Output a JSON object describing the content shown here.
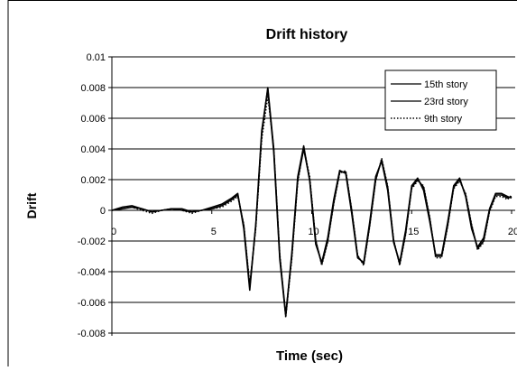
{
  "chart_data": {
    "type": "line",
    "title": "Drift history",
    "xlabel": "Time (sec)",
    "ylabel": "Drift",
    "xlim": [
      0,
      20
    ],
    "ylim": [
      -0.008,
      0.01
    ],
    "x_ticks": [
      "0",
      "5",
      "10",
      "15",
      "20"
    ],
    "y_ticks": [
      "0.01",
      "0.008",
      "0.006",
      "0.004",
      "0.002",
      "0",
      "-0.002",
      "-0.004",
      "-0.006",
      "-0.008",
      ""
    ],
    "grid": "horizontal",
    "legend_position": "top-right",
    "series": [
      {
        "name": "15th story",
        "line_style": "solid",
        "color": "#000000",
        "x": [
          0,
          0.5,
          1,
          1.5,
          2,
          2.5,
          3,
          3.5,
          4,
          4.5,
          5,
          5.5,
          6,
          6.3,
          6.6,
          6.9,
          7.2,
          7.5,
          7.8,
          8.1,
          8.4,
          8.7,
          9,
          9.3,
          9.6,
          9.9,
          10.2,
          10.5,
          10.8,
          11.1,
          11.4,
          11.7,
          12,
          12.3,
          12.6,
          12.9,
          13.2,
          13.5,
          13.8,
          14.1,
          14.4,
          14.7,
          15,
          15.3,
          15.6,
          15.9,
          16.2,
          16.5,
          16.8,
          17.1,
          17.4,
          17.7,
          18,
          18.3,
          18.6,
          18.9,
          19.2,
          19.5,
          19.8,
          20
        ],
        "y": [
          0,
          0.0001,
          0.0002,
          0.0001,
          -0.0001,
          0,
          0.0001,
          0,
          -0.0001,
          0,
          0.0001,
          0.0003,
          0.0007,
          0.001,
          -0.001,
          -0.005,
          -0.001,
          0.005,
          0.008,
          0.004,
          -0.003,
          -0.0068,
          -0.003,
          0.002,
          0.004,
          0.002,
          -0.002,
          -0.0035,
          -0.002,
          0.0005,
          0.0025,
          0.0025,
          0,
          -0.003,
          -0.0035,
          -0.001,
          0.002,
          0.0033,
          0.0015,
          -0.002,
          -0.0035,
          -0.0015,
          0.0015,
          0.002,
          0.0015,
          -0.0005,
          -0.003,
          -0.003,
          -0.001,
          0.0015,
          0.002,
          0.001,
          -0.001,
          -0.0025,
          -0.002,
          0,
          0.001,
          0.001,
          0.0008,
          0.0009
        ]
      },
      {
        "name": "23rd story",
        "line_style": "solid",
        "color": "#000000",
        "x": [
          0,
          0.5,
          1,
          1.5,
          2,
          2.5,
          3,
          3.5,
          4,
          4.5,
          5,
          5.5,
          6,
          6.3,
          6.6,
          6.9,
          7.2,
          7.5,
          7.8,
          8.1,
          8.4,
          8.7,
          9,
          9.3,
          9.6,
          9.9,
          10.2,
          10.5,
          10.8,
          11.1,
          11.4,
          11.7,
          12,
          12.3,
          12.6,
          12.9,
          13.2,
          13.5,
          13.8,
          14.1,
          14.4,
          14.7,
          15,
          15.3,
          15.6,
          15.9,
          16.2,
          16.5,
          16.8,
          17.1,
          17.4,
          17.7,
          18,
          18.3,
          18.6,
          18.9,
          19.2,
          19.5,
          19.8,
          20
        ],
        "y": [
          0,
          0.0002,
          0.0003,
          0.0001,
          -0.0001,
          0,
          0.0001,
          0.0001,
          -0.0001,
          0,
          0.0002,
          0.0004,
          0.0008,
          0.0011,
          -0.0012,
          -0.0052,
          -0.0009,
          0.0052,
          0.0079,
          0.0038,
          -0.0032,
          -0.0069,
          -0.0028,
          0.0022,
          0.0042,
          0.0019,
          -0.0022,
          -0.0034,
          -0.0018,
          0.0007,
          0.0026,
          0.0024,
          -0.0002,
          -0.0031,
          -0.0034,
          -0.0008,
          0.0022,
          0.0032,
          0.0013,
          -0.0021,
          -0.0034,
          -0.0013,
          0.0016,
          0.0021,
          0.0013,
          -0.0007,
          -0.0029,
          -0.0029,
          -0.0008,
          0.0016,
          0.0021,
          0.0009,
          -0.0012,
          -0.0024,
          -0.0018,
          0.0001,
          0.0011,
          0.0011,
          0.0009,
          0.0008
        ]
      },
      {
        "name": "9th story",
        "line_style": "dotted",
        "color": "#000000",
        "x": [
          0,
          0.5,
          1,
          1.5,
          2,
          2.5,
          3,
          3.5,
          4,
          4.5,
          5,
          5.5,
          6,
          6.3,
          6.6,
          6.9,
          7.2,
          7.5,
          7.8,
          8.1,
          8.4,
          8.7,
          9,
          9.3,
          9.6,
          9.9,
          10.2,
          10.5,
          10.8,
          11.1,
          11.4,
          11.7,
          12,
          12.3,
          12.6,
          12.9,
          13.2,
          13.5,
          13.8,
          14.1,
          14.4,
          14.7,
          15,
          15.3,
          15.6,
          15.9,
          16.2,
          16.5,
          16.8,
          17.1,
          17.4,
          17.7,
          18,
          18.3,
          18.6,
          18.9,
          19.2,
          19.5,
          19.8,
          20
        ],
        "y": [
          0,
          0.0001,
          0.0002,
          0,
          -0.0002,
          0,
          0.0001,
          0,
          -0.0002,
          0,
          0.0001,
          0.0002,
          0.0006,
          0.0009,
          -0.0009,
          -0.0048,
          -0.0012,
          0.0046,
          0.0074,
          0.0041,
          -0.0028,
          -0.007,
          -0.0032,
          0.0018,
          0.0041,
          0.0022,
          -0.0019,
          -0.0036,
          -0.0021,
          0.0004,
          0.0024,
          0.0026,
          0.0001,
          -0.0029,
          -0.0036,
          -0.0011,
          0.0019,
          0.0034,
          0.0016,
          -0.0019,
          -0.0036,
          -0.0016,
          0.0014,
          0.0019,
          0.0016,
          -0.0004,
          -0.0031,
          -0.0031,
          -0.0011,
          0.0014,
          0.0019,
          0.0011,
          -0.0009,
          -0.0026,
          -0.0021,
          -0.0001,
          0.0009,
          0.0009,
          0.0007,
          0.001
        ]
      }
    ]
  }
}
